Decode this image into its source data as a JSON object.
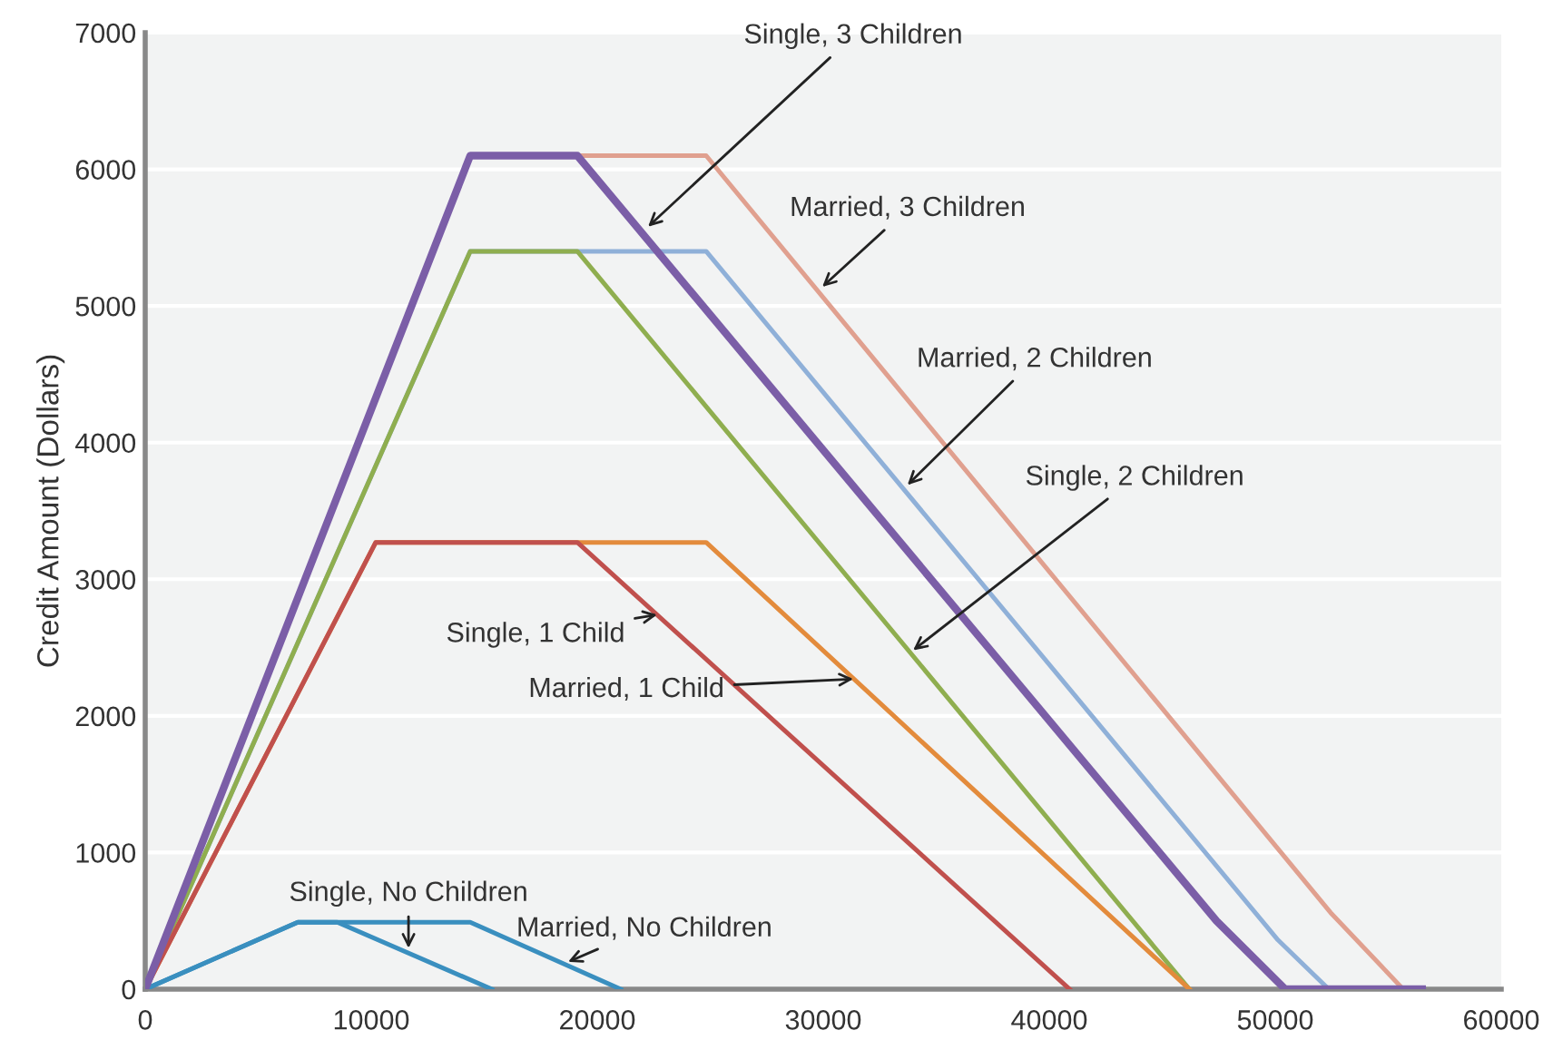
{
  "chart_data": {
    "type": "line",
    "ylabel": "Credit Amount (Dollars)",
    "xlim": [
      0,
      60000
    ],
    "xticks": [
      0,
      10000,
      20000,
      30000,
      40000,
      50000,
      60000
    ],
    "ylim": [
      0,
      7000
    ],
    "yticks": [
      0,
      1000,
      2000,
      3000,
      4000,
      5000,
      6000,
      7000
    ],
    "grid": "y",
    "marker": "none",
    "line_style": "solid",
    "series": [
      {
        "color": "#e0a08f",
        "x": [
          0,
          14380,
          24820,
          52450,
          55660
        ],
        "values": [
          0,
          6100,
          6100,
          560,
          0
        ]
      },
      {
        "color": "#8fb0d8",
        "x": [
          0,
          14380,
          24820,
          50120,
          52370
        ],
        "values": [
          0,
          5400,
          5400,
          360,
          0
        ]
      },
      {
        "color": "#8fae4f",
        "x": [
          0,
          14380,
          19120,
          46200
        ],
        "values": [
          0,
          5400,
          5400,
          0
        ]
      },
      {
        "color": "#e38b3c",
        "x": [
          0,
          10200,
          24820,
          46200
        ],
        "values": [
          0,
          3270,
          3270,
          0
        ]
      },
      {
        "color": "#c0504d",
        "x": [
          0,
          10200,
          19120,
          40900
        ],
        "values": [
          0,
          3270,
          3270,
          0
        ]
      },
      {
        "color": "#3a8fbf",
        "x": [
          0,
          6750,
          14380,
          21040
        ],
        "values": [
          0,
          490,
          490,
          0
        ]
      },
      {
        "color": "#3a8fbf",
        "x": [
          0,
          6750,
          8500,
          15340
        ],
        "values": [
          0,
          490,
          490,
          0
        ]
      },
      {
        "color": "#7b5ea7",
        "x": [
          0,
          14380,
          19120,
          47400,
          50440,
          56500
        ],
        "values": [
          0,
          6100,
          6100,
          500,
          0,
          0
        ]
      }
    ],
    "annotations": [
      {
        "text": "Single, 3 Children",
        "x": 22250,
        "y": 5580
      },
      {
        "text": "Married, 3 Children",
        "x": 29960,
        "y": 5140
      },
      {
        "text": "Married, 2 Children",
        "x": 33730,
        "y": 3690
      },
      {
        "text": "Single, 2 Children",
        "x": 33980,
        "y": 2480
      },
      {
        "text": "Single, 1 Child",
        "x": 22650,
        "y": 2740
      },
      {
        "text": "Married, 1 Child",
        "x": 31330,
        "y": 2270
      },
      {
        "text": "Single, No Children",
        "x": 11650,
        "y": 300
      },
      {
        "text": "Married, No Children",
        "x": 18710,
        "y": 200
      }
    ]
  }
}
